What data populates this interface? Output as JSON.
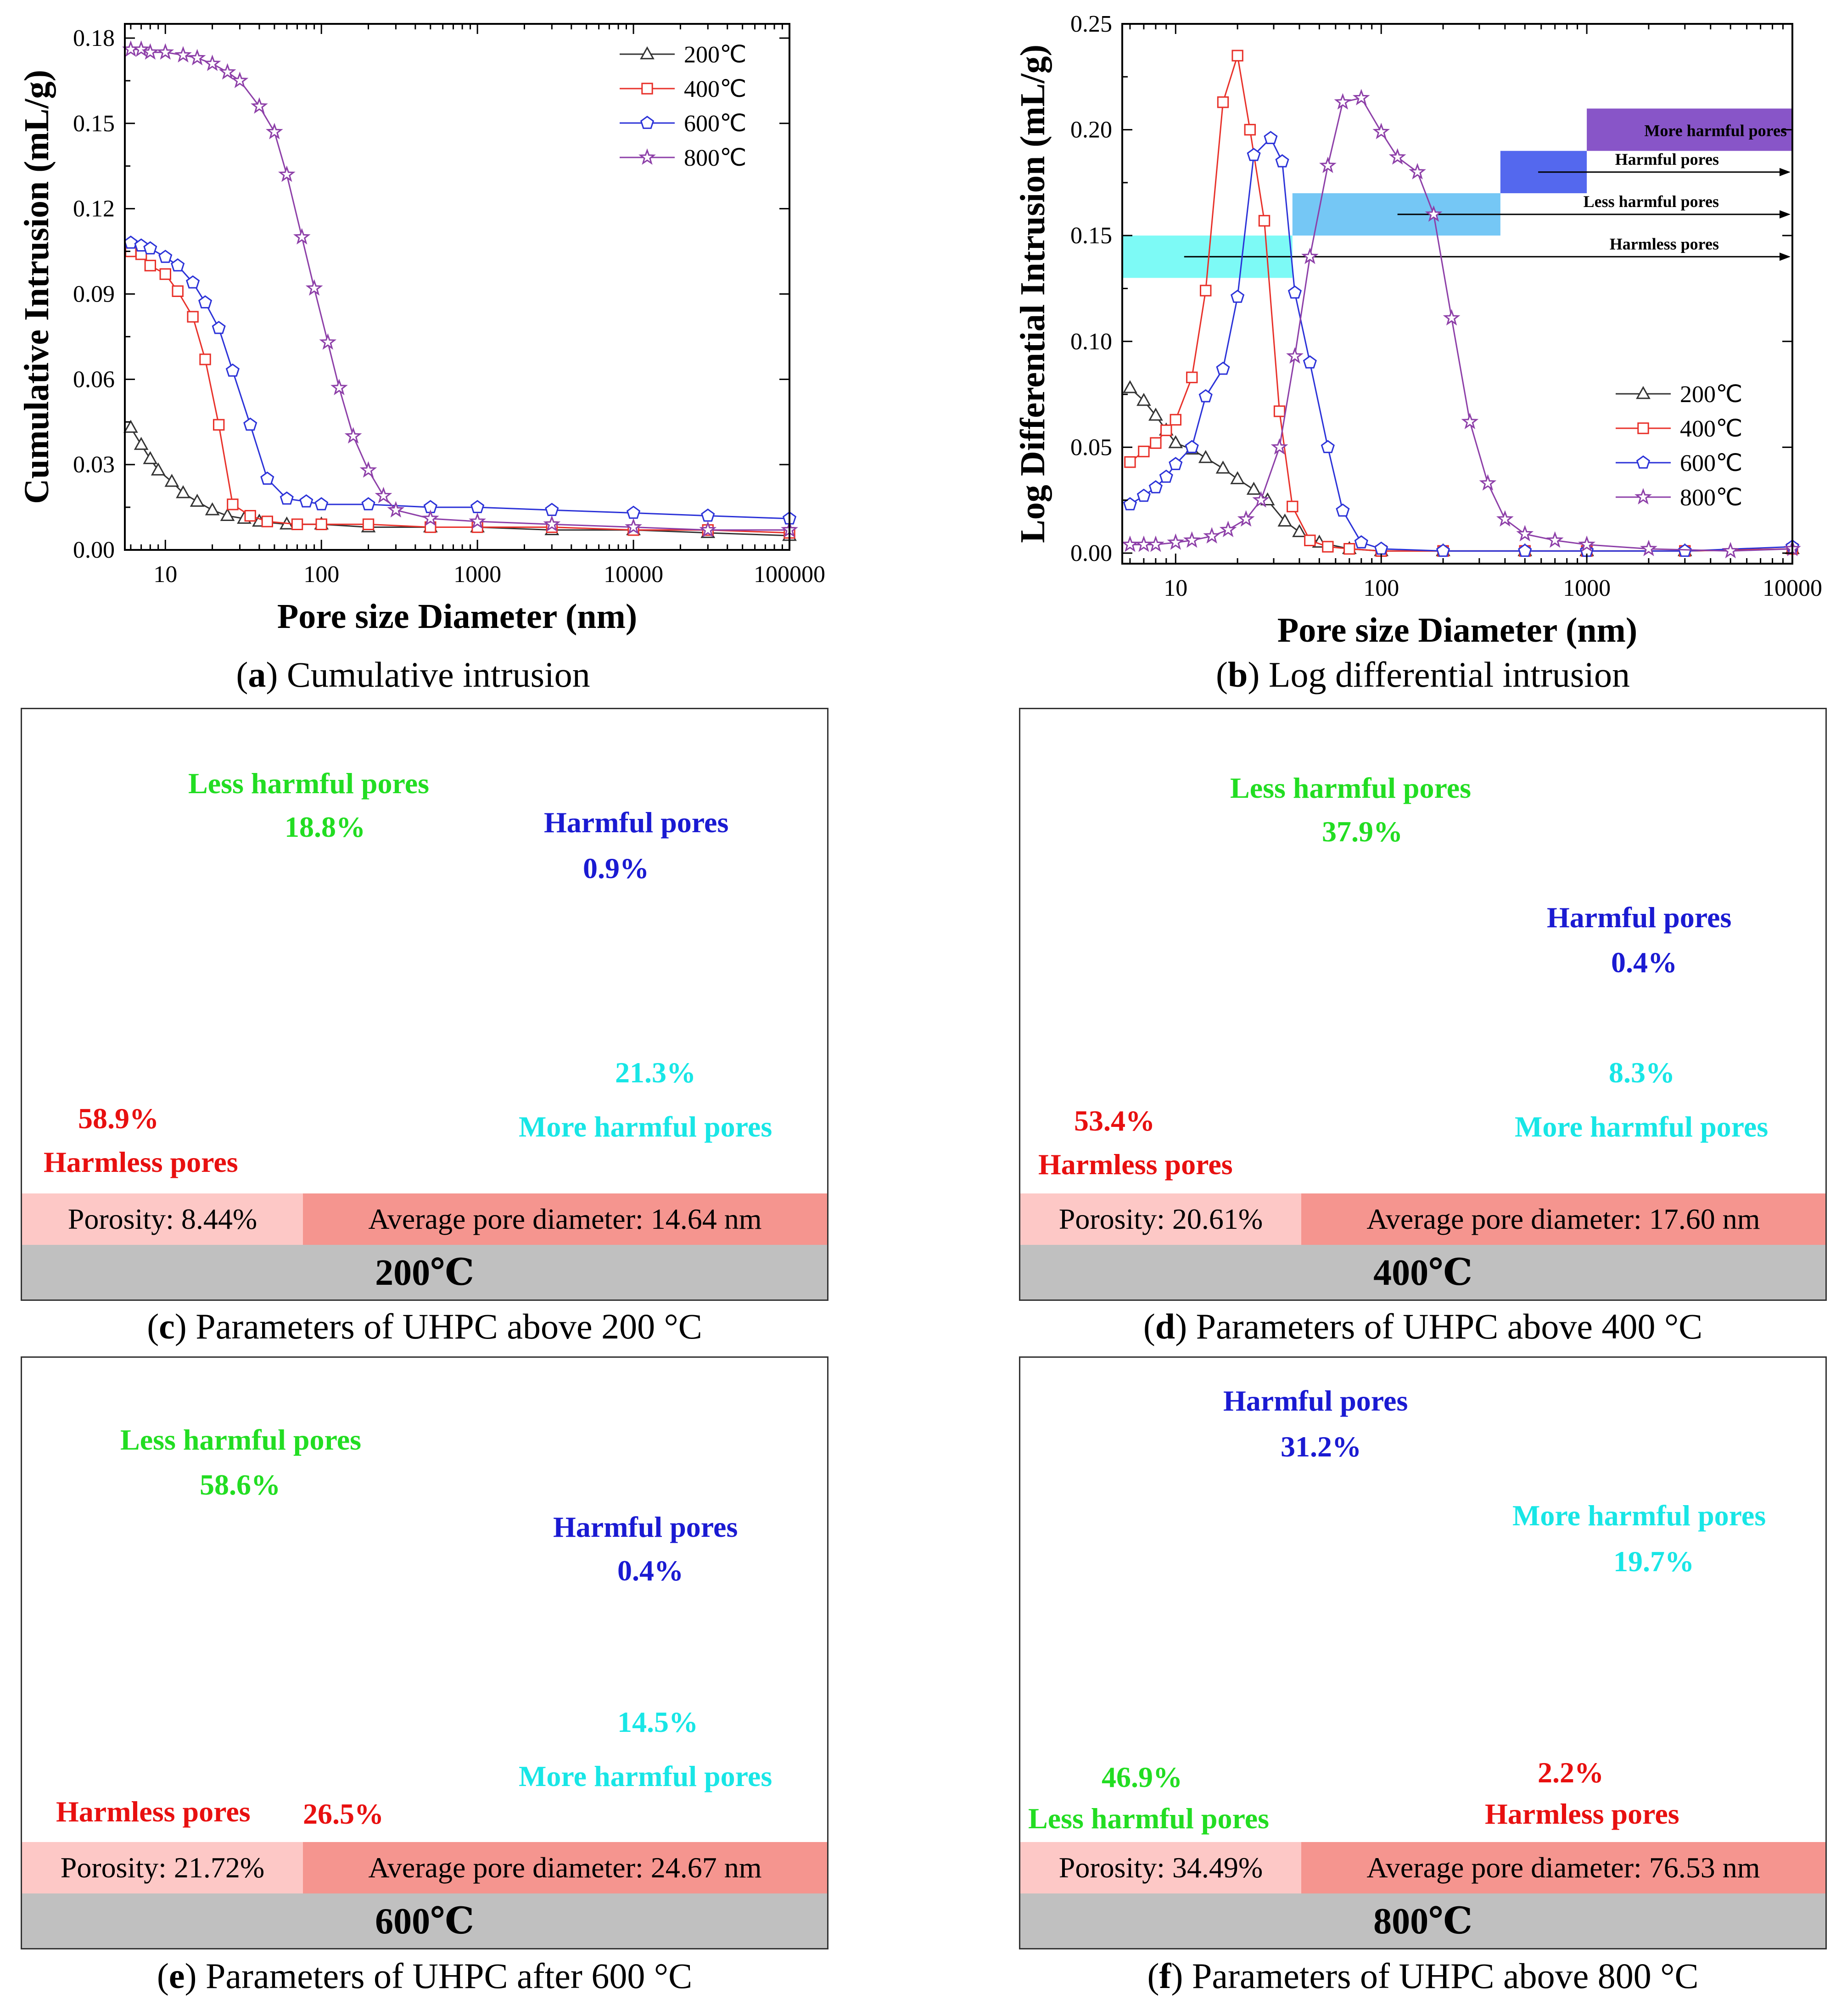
{
  "chart_data": [
    {
      "id": "a",
      "type": "line",
      "caption_letter": "a",
      "caption_text": "Cumulative intrusion",
      "xlabel": "Pore size Diameter (nm)",
      "ylabel": "Cumulative Intrusion (mL/g)",
      "xscale": "log",
      "xlim": [
        5.5,
        100000
      ],
      "ylim": [
        0,
        0.185
      ],
      "xticks": [
        10,
        100,
        1000,
        10000,
        100000
      ],
      "xtick_labels": [
        "10",
        "100",
        "1000",
        "10000",
        "100000"
      ],
      "yticks": [
        0,
        0.03,
        0.06,
        0.09,
        0.12,
        0.15,
        0.18
      ],
      "ytick_labels": [
        "0.00",
        "0.03",
        "0.06",
        "0.09",
        "0.12",
        "0.15",
        "0.18"
      ],
      "legend_position": "top-right",
      "series": [
        {
          "name": "200℃",
          "color": "#333333",
          "marker": "triangle",
          "x": [
            6,
            7,
            8,
            9,
            11,
            13,
            16,
            20,
            25,
            32,
            40,
            60,
            100,
            200,
            500,
            1000,
            3000,
            10000,
            30000,
            100000
          ],
          "y": [
            0.043,
            0.037,
            0.032,
            0.028,
            0.024,
            0.02,
            0.017,
            0.014,
            0.012,
            0.011,
            0.01,
            0.009,
            0.009,
            0.008,
            0.008,
            0.008,
            0.007,
            0.007,
            0.006,
            0.005
          ]
        },
        {
          "name": "400℃",
          "color": "#e8312a",
          "marker": "square",
          "x": [
            6,
            7,
            8,
            10,
            12,
            15,
            18,
            22,
            27,
            35,
            45,
            70,
            100,
            200,
            500,
            1000,
            3000,
            10000,
            30000,
            100000
          ],
          "y": [
            0.105,
            0.104,
            0.1,
            0.097,
            0.091,
            0.082,
            0.067,
            0.044,
            0.016,
            0.012,
            0.01,
            0.009,
            0.009,
            0.009,
            0.008,
            0.008,
            0.008,
            0.007,
            0.007,
            0.006
          ]
        },
        {
          "name": "600℃",
          "color": "#2b32d8",
          "marker": "pentagon",
          "x": [
            6,
            7,
            8,
            10,
            12,
            15,
            18,
            22,
            27,
            35,
            45,
            60,
            80,
            100,
            200,
            500,
            1000,
            3000,
            10000,
            30000,
            100000
          ],
          "y": [
            0.108,
            0.107,
            0.106,
            0.103,
            0.1,
            0.094,
            0.087,
            0.078,
            0.063,
            0.044,
            0.025,
            0.018,
            0.017,
            0.016,
            0.016,
            0.015,
            0.015,
            0.014,
            0.013,
            0.012,
            0.011
          ]
        },
        {
          "name": "800℃",
          "color": "#8d3fa8",
          "marker": "star",
          "x": [
            6,
            7,
            8,
            10,
            13,
            16,
            20,
            25,
            30,
            40,
            50,
            60,
            75,
            90,
            110,
            130,
            160,
            200,
            250,
            300,
            500,
            1000,
            3000,
            10000,
            30000,
            100000
          ],
          "y": [
            0.176,
            0.176,
            0.175,
            0.175,
            0.174,
            0.173,
            0.171,
            0.168,
            0.165,
            0.156,
            0.147,
            0.132,
            0.11,
            0.092,
            0.073,
            0.057,
            0.04,
            0.028,
            0.019,
            0.014,
            0.011,
            0.01,
            0.009,
            0.008,
            0.007,
            0.007
          ]
        }
      ]
    },
    {
      "id": "b",
      "type": "line",
      "caption_letter": "b",
      "caption_text": "Log differential intrusion",
      "xlabel": "Pore size Diameter (nm)",
      "ylabel": "Log Differential Intrusion (mL/g)",
      "xscale": "log",
      "xlim": [
        5.5,
        10000
      ],
      "ylim": [
        -0.005,
        0.25
      ],
      "xticks": [
        10,
        100,
        1000,
        10000
      ],
      "xtick_labels": [
        "10",
        "100",
        "1000",
        "10000"
      ],
      "yticks": [
        0,
        0.05,
        0.1,
        0.15,
        0.2,
        0.25
      ],
      "ytick_labels": [
        "0.00",
        "0.05",
        "0.10",
        "0.15",
        "0.20",
        "0.25"
      ],
      "legend_position": "bottom-right",
      "pore_bands": [
        {
          "label": "Harmless pores",
          "x": [
            5.5,
            37
          ],
          "y": [
            0.13,
            0.15
          ],
          "color": "#7dfaf6",
          "arrow_from": 11
        },
        {
          "label": "Less harmful pores",
          "x": [
            37,
            380
          ],
          "y": [
            0.15,
            0.17
          ],
          "color": "#75c7f5",
          "arrow_from": 120
        },
        {
          "label": "Harmful pores",
          "x": [
            380,
            1000
          ],
          "y": [
            0.17,
            0.19
          ],
          "color": "#5468ee",
          "arrow_from": 580
        },
        {
          "label": "More harmful pores",
          "x": [
            1000,
            10000
          ],
          "y": [
            0.19,
            0.21
          ],
          "color": "#8855c8",
          "arrow_from": null
        }
      ],
      "series": [
        {
          "name": "200℃",
          "color": "#333333",
          "marker": "triangle",
          "x": [
            6,
            7,
            8,
            9,
            10,
            12,
            14,
            17,
            20,
            24,
            28,
            34,
            40,
            50,
            70,
            100,
            200,
            500,
            1000,
            3000,
            10000
          ],
          "y": [
            0.078,
            0.072,
            0.065,
            0.058,
            0.052,
            0.049,
            0.045,
            0.04,
            0.035,
            0.03,
            0.025,
            0.015,
            0.01,
            0.005,
            0.002,
            0.001,
            0.001,
            0.001,
            0.001,
            0.001,
            0.002
          ]
        },
        {
          "name": "400℃",
          "color": "#e8312a",
          "marker": "square",
          "x": [
            6,
            7,
            8,
            9,
            10,
            12,
            14,
            17,
            20,
            23,
            27,
            32,
            37,
            45,
            55,
            70,
            100,
            200,
            500,
            1000,
            3000,
            10000
          ],
          "y": [
            0.043,
            0.048,
            0.052,
            0.058,
            0.063,
            0.083,
            0.124,
            0.213,
            0.235,
            0.2,
            0.157,
            0.067,
            0.022,
            0.006,
            0.003,
            0.002,
            0.001,
            0.001,
            0.001,
            0.001,
            0.001,
            0.002
          ]
        },
        {
          "name": "600℃",
          "color": "#2b32d8",
          "marker": "pentagon",
          "x": [
            6,
            7,
            8,
            9,
            10,
            12,
            14,
            17,
            20,
            24,
            29,
            33,
            38,
            45,
            55,
            65,
            80,
            100,
            200,
            500,
            1000,
            3000,
            10000
          ],
          "y": [
            0.023,
            0.027,
            0.031,
            0.036,
            0.042,
            0.05,
            0.074,
            0.087,
            0.121,
            0.188,
            0.196,
            0.185,
            0.123,
            0.09,
            0.05,
            0.02,
            0.005,
            0.002,
            0.001,
            0.001,
            0.001,
            0.001,
            0.003
          ]
        },
        {
          "name": "800℃",
          "color": "#8d3fa8",
          "marker": "star",
          "x": [
            6,
            7,
            8,
            10,
            12,
            15,
            18,
            22,
            26,
            32,
            38,
            45,
            55,
            65,
            80,
            100,
            120,
            150,
            180,
            220,
            270,
            330,
            400,
            500,
            700,
            1000,
            2000,
            5000,
            10000
          ],
          "y": [
            0.004,
            0.004,
            0.004,
            0.005,
            0.006,
            0.008,
            0.011,
            0.016,
            0.025,
            0.05,
            0.093,
            0.14,
            0.183,
            0.213,
            0.215,
            0.199,
            0.187,
            0.18,
            0.16,
            0.111,
            0.062,
            0.033,
            0.016,
            0.009,
            0.006,
            0.004,
            0.002,
            0.001,
            0.002
          ]
        }
      ]
    },
    {
      "id": "c",
      "type": "pie",
      "caption_letter": "c",
      "caption_text": "Parameters of UHPC above 200 °C",
      "categories": [
        "Harmless pores",
        "Less harmful pores",
        "Harmful pores",
        "More harmful pores"
      ],
      "values": [
        58.9,
        18.8,
        0.9,
        21.3
      ],
      "value_labels": [
        "58.9%",
        "18.8%",
        "0.9%",
        "21.3%"
      ],
      "colors": [
        "#ef1010",
        "#1ee81e",
        "#1212d2",
        "#17f2f2"
      ],
      "porosity": "Porosity: 8.44%",
      "diameter": "Average pore diameter: 14.64 nm",
      "temperature": "200℃"
    },
    {
      "id": "d",
      "type": "pie",
      "caption_letter": "d",
      "caption_text": "Parameters of UHPC above 400 °C",
      "categories": [
        "Harmless pores",
        "Less harmful pores",
        "Harmful pores",
        "More harmful pores"
      ],
      "values": [
        53.4,
        37.9,
        0.4,
        8.3
      ],
      "value_labels": [
        "53.4%",
        "37.9%",
        "0.4%",
        "8.3%"
      ],
      "colors": [
        "#ef1010",
        "#1ee81e",
        "#1212d2",
        "#17f2f2"
      ],
      "porosity": "Porosity: 20.61%",
      "diameter": "Average pore diameter: 17.60 nm",
      "temperature": "400℃"
    },
    {
      "id": "e",
      "type": "pie",
      "caption_letter": "e",
      "caption_text": "Parameters of UHPC after 600 °C",
      "categories": [
        "Harmless pores",
        "Less harmful pores",
        "Harmful pores",
        "More harmful pores"
      ],
      "values": [
        26.5,
        58.6,
        0.4,
        14.5
      ],
      "value_labels": [
        "26.5%",
        "58.6%",
        "0.4%",
        "14.5%"
      ],
      "colors": [
        "#ef1010",
        "#1ee81e",
        "#1212d2",
        "#17f2f2"
      ],
      "porosity": "Porosity: 21.72%",
      "diameter": "Average pore diameter: 24.67 nm",
      "temperature": "600℃"
    },
    {
      "id": "f",
      "type": "pie",
      "caption_letter": "f",
      "caption_text": "Parameters of UHPC above 800 °C",
      "categories": [
        "Harmless pores",
        "Less harmful pores",
        "Harmful pores",
        "More harmful pores"
      ],
      "values": [
        2.2,
        46.9,
        31.2,
        19.7
      ],
      "value_labels": [
        "2.2%",
        "46.9%",
        "31.2%",
        "19.7%"
      ],
      "colors": [
        "#ef1010",
        "#1ee81e",
        "#1212d2",
        "#17f2f2"
      ],
      "porosity": "Porosity: 34.49%",
      "diameter": "Average pore diameter: 76.53 nm",
      "temperature": "800℃"
    }
  ]
}
